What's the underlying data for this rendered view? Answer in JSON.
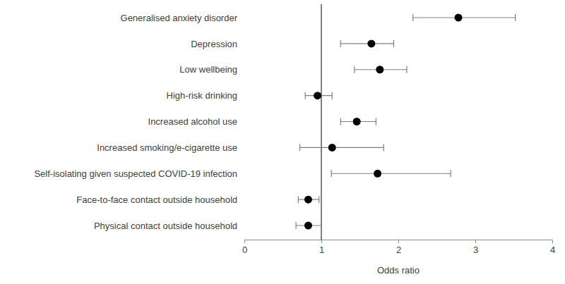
{
  "chart_data": {
    "type": "forest",
    "x_label": "Odds ratio",
    "categories": [
      "Generalised anxiety disorder",
      "Depression",
      "Low wellbeing",
      "High-risk drinking",
      "Increased alcohol use",
      "Increased smoking/e-cigarette use",
      "Self-isolating given suspected COVID-19 infection",
      "Face-to-face contact outside household",
      "Physical contact outside household"
    ],
    "values": [
      2.78,
      1.65,
      1.76,
      0.95,
      1.46,
      1.14,
      1.73,
      0.83,
      0.83
    ],
    "ci_lower": [
      2.19,
      1.25,
      1.43,
      0.79,
      1.25,
      0.72,
      1.13,
      0.7,
      0.67
    ],
    "ci_upper": [
      3.52,
      1.94,
      2.11,
      1.14,
      1.71,
      1.81,
      2.68,
      0.97,
      1.0
    ],
    "reference_line": 1,
    "color": "#000000",
    "xlim": [
      0,
      4
    ],
    "xticks": [
      0,
      1,
      2,
      3,
      4
    ],
    "grid": false
  }
}
